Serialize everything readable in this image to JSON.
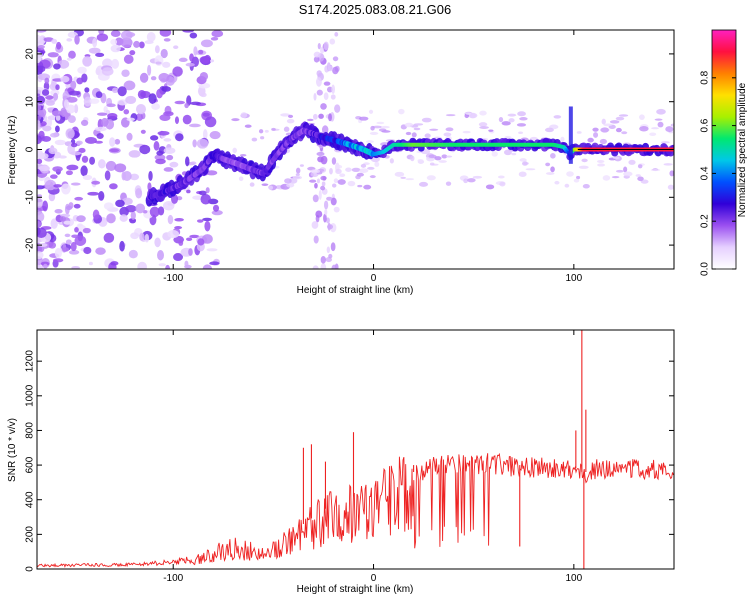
{
  "title": "S174.2025.083.08.21.G06",
  "chart_data": [
    {
      "type": "heatmap",
      "xlabel": "Height of straight line (km)",
      "ylabel": "Frequency (Hz)",
      "xlim": [
        -168,
        150
      ],
      "ylim": [
        -25,
        25
      ],
      "xticks": [
        -100,
        0,
        100
      ],
      "yticks": [
        -20,
        -10,
        0,
        10,
        20
      ],
      "colorbar": {
        "label": "Normalized spectral amplitude",
        "range": [
          0,
          1
        ],
        "ticks": [
          "0.0",
          "0.2",
          "0.4",
          "0.6",
          "0.8"
        ],
        "colors": [
          "#ffffff",
          "#e6d0ff",
          "#9b50f0",
          "#3000d8",
          "#0050ff",
          "#00c8e8",
          "#00e870",
          "#a8f000",
          "#ffe000",
          "#ff8000",
          "#ff1040",
          "#ff20c0"
        ]
      },
      "ridge": {
        "x": [
          -112,
          -105,
          -95,
          -85,
          -80,
          -75,
          -68,
          -62,
          -55,
          -48,
          -42,
          -35,
          -28,
          -25,
          -20,
          -12,
          -5,
          0,
          5,
          10,
          20,
          40,
          60,
          80,
          90,
          95,
          98,
          100,
          105,
          120,
          150
        ],
        "y": [
          -10,
          -9,
          -7,
          -4,
          -1,
          -2,
          -3,
          -4,
          -5,
          -1,
          2,
          4,
          3,
          2.5,
          2,
          1,
          0,
          -1,
          -0.5,
          1,
          1,
          1,
          1,
          1,
          1,
          0.5,
          -1,
          0,
          0,
          0,
          0
        ],
        "amplitude": [
          0.25,
          0.25,
          0.22,
          0.2,
          0.25,
          0.2,
          0.18,
          0.2,
          0.22,
          0.2,
          0.22,
          0.2,
          0.25,
          0.3,
          0.3,
          0.4,
          0.45,
          0.4,
          0.45,
          0.5,
          0.6,
          0.55,
          0.55,
          0.55,
          0.55,
          0.5,
          0.3,
          0.6,
          0.9,
          0.9,
          0.9
        ]
      }
    },
    {
      "type": "line",
      "xlabel": "Height of straight line (km)",
      "ylabel": "SNR (10 * v/v)",
      "xlim": [
        -168,
        150
      ],
      "ylim": [
        0,
        1380
      ],
      "xticks": [
        -100,
        0,
        100
      ],
      "yticks": [
        0,
        200,
        400,
        600,
        800,
        1000,
        1200
      ],
      "color": "#ee2222",
      "envelope": {
        "x": [
          -168,
          -120,
          -100,
          -90,
          -80,
          -70,
          -60,
          -50,
          -40,
          -30,
          -20,
          -10,
          0,
          10,
          20,
          30,
          40,
          50,
          60,
          70,
          80,
          90,
          100,
          104,
          106,
          110,
          120,
          130,
          140,
          150
        ],
        "y": [
          20,
          25,
          40,
          55,
          110,
          150,
          130,
          130,
          220,
          300,
          380,
          420,
          470,
          520,
          560,
          600,
          620,
          620,
          620,
          600,
          600,
          590,
          590,
          560,
          560,
          590,
          590,
          590,
          590,
          590
        ]
      },
      "spikes": [
        {
          "x": -35,
          "y": 700
        },
        {
          "x": -31,
          "y": 720
        },
        {
          "x": -24,
          "y": 620
        },
        {
          "x": -10,
          "y": 790
        },
        {
          "x": 20,
          "y": 600
        },
        {
          "x": 73,
          "y": 130
        },
        {
          "x": 101,
          "y": 800
        },
        {
          "x": 104,
          "y": 1380
        },
        {
          "x": 105,
          "y": 0
        },
        {
          "x": 106,
          "y": 920
        }
      ]
    }
  ]
}
